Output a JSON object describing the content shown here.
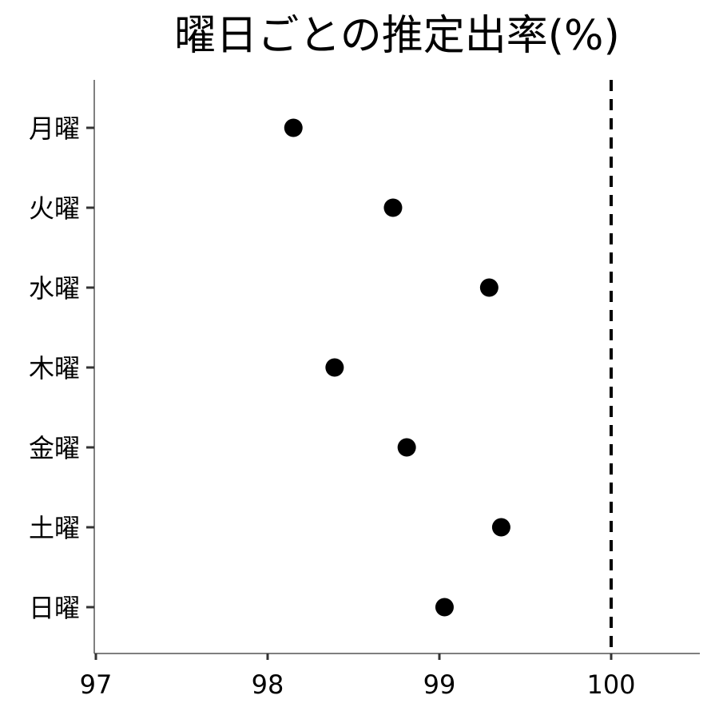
{
  "chart_data": {
    "type": "scatter",
    "title": "曜日ごとの推定出率(%)",
    "xlabel": "",
    "ylabel": "",
    "xlim": [
      97,
      100.5
    ],
    "x_ticks": [
      97,
      98,
      99,
      100
    ],
    "x_tick_labels": [
      "97",
      "98",
      "99",
      "100"
    ],
    "categories": [
      "月曜",
      "火曜",
      "水曜",
      "木曜",
      "金曜",
      "土曜",
      "日曜"
    ],
    "values": [
      98.15,
      98.73,
      99.29,
      98.39,
      98.81,
      99.36,
      99.03
    ],
    "reference_line": {
      "x": 100,
      "style": "dashed"
    },
    "grid": false,
    "legend": "none",
    "colors": {
      "point": "#000000",
      "reference_line": "#000000",
      "axis": "#555555"
    }
  }
}
